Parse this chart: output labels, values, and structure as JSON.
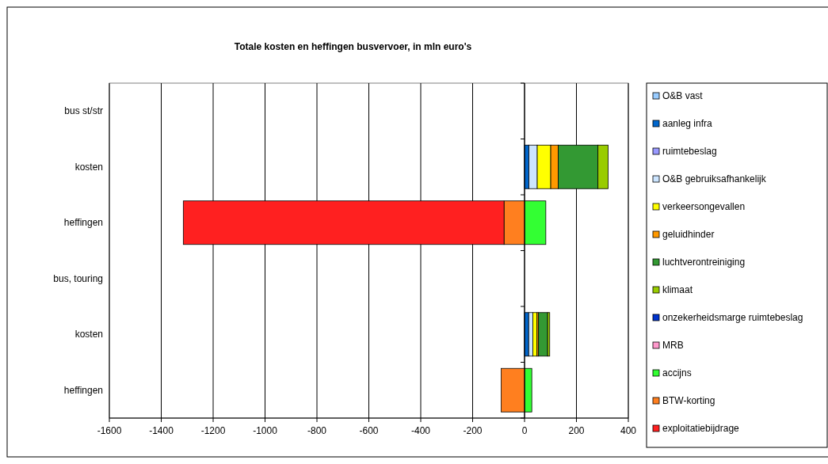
{
  "chart_data": {
    "type": "bar",
    "title": "Totale kosten en heffingen busvervoer, in mln euro's",
    "orientation": "horizontal",
    "stacked": true,
    "categories": [
      "bus st/str",
      "kosten",
      "heffingen",
      "bus, touring",
      "kosten",
      "heffingen"
    ],
    "xlim": [
      -1600,
      400
    ],
    "xticks": [
      -1600,
      -1400,
      -1200,
      -1000,
      -800,
      -600,
      -400,
      -200,
      0,
      200,
      400
    ],
    "grid": "x",
    "legend": "right",
    "series": [
      {
        "name": "O&B vast",
        "color": "#99ccff",
        "values": [
          null,
          null,
          null,
          null,
          null,
          null
        ]
      },
      {
        "name": "aanleg infra",
        "color": "#0066cc",
        "values": [
          null,
          17,
          null,
          null,
          16,
          null
        ]
      },
      {
        "name": "ruimtebeslag",
        "color": "#9999ff",
        "values": [
          null,
          null,
          null,
          null,
          null,
          null
        ]
      },
      {
        "name": "O&B gebruiksafhankelijk",
        "color": "#cce5ff",
        "values": [
          null,
          32,
          null,
          null,
          16,
          null
        ]
      },
      {
        "name": "verkeersongevallen",
        "color": "#ffff00",
        "values": [
          null,
          52,
          null,
          null,
          16,
          null
        ]
      },
      {
        "name": "geluidhinder",
        "color": "#ff9900",
        "values": [
          null,
          29,
          null,
          null,
          6,
          null
        ]
      },
      {
        "name": "luchtverontreiniging",
        "color": "#339933",
        "values": [
          null,
          153,
          null,
          null,
          35,
          null
        ]
      },
      {
        "name": "klimaat",
        "color": "#99cc00",
        "values": [
          null,
          39,
          null,
          null,
          8,
          null
        ]
      },
      {
        "name": "onzekerheidsmarge ruimtebeslag",
        "color": "#0033cc",
        "values": [
          null,
          null,
          null,
          null,
          null,
          null
        ]
      },
      {
        "name": "MRB",
        "color": "#ff99cc",
        "values": [
          null,
          null,
          null,
          null,
          null,
          null
        ]
      },
      {
        "name": "accijns",
        "color": "#33ff33",
        "values": [
          null,
          null,
          82,
          null,
          null,
          28
        ]
      },
      {
        "name": "BTW-korting",
        "color": "#ff7f1f",
        "values": [
          null,
          null,
          -79,
          null,
          null,
          -90
        ]
      },
      {
        "name": "exploitatiebijdrage",
        "color": "#ff2020",
        "values": [
          null,
          null,
          -1236,
          null,
          null,
          null
        ]
      }
    ]
  }
}
